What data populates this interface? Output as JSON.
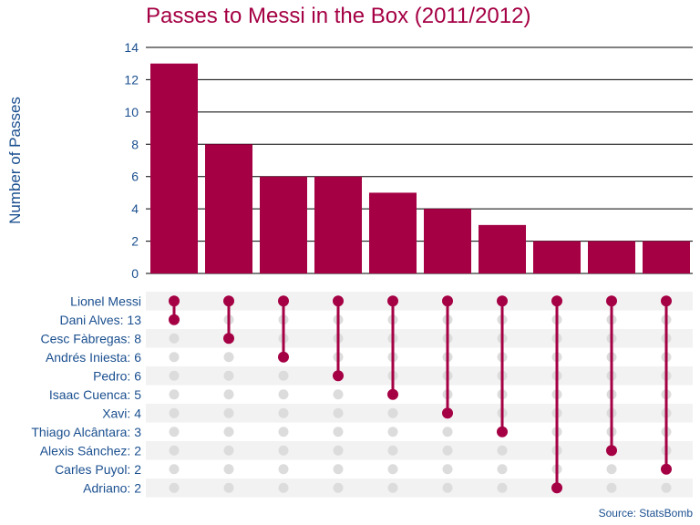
{
  "title": "Passes to Messi in the Box (2011/2012)",
  "source": "Source: StatsBomb",
  "colors": {
    "bar": "#a50044",
    "dot_active": "#a50044",
    "dot_inactive": "#dcdcdc",
    "label_text": "#1a4f8f",
    "stripe": "#f2f2f2",
    "grid": "#000000"
  },
  "chart_data": {
    "type": "bar",
    "title": "Passes to Messi in the Box (2011/2012)",
    "ylabel": "Number of Passes",
    "ylim": [
      0,
      14
    ],
    "yticks": [
      0,
      2,
      4,
      6,
      8,
      10,
      12,
      14
    ],
    "grid": true,
    "values": [
      13,
      8,
      6,
      6,
      5,
      4,
      3,
      2,
      2,
      2
    ],
    "set_labels": [
      "Lionel Messi",
      "Dani Alves: 13",
      "Cesc Fàbregas: 8",
      "Andrés Iniesta: 6",
      "Pedro: 6",
      "Isaac Cuenca: 5",
      "Xavi: 4",
      "Thiago Alcântara: 3",
      "Alexis Sánchez: 2",
      "Carles Puyol: 2",
      "Adriano: 2"
    ],
    "intersections": [
      [
        0,
        1
      ],
      [
        0,
        2
      ],
      [
        0,
        3
      ],
      [
        0,
        4
      ],
      [
        0,
        5
      ],
      [
        0,
        6
      ],
      [
        0,
        7
      ],
      [
        0,
        10
      ],
      [
        0,
        8
      ],
      [
        0,
        9
      ]
    ]
  }
}
